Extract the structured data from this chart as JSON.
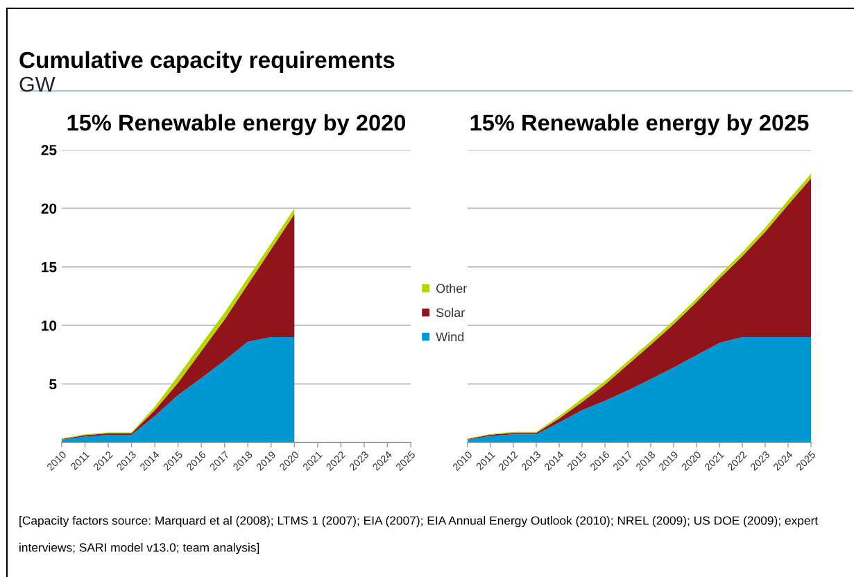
{
  "chart_data": [
    {
      "type": "other",
      "title": "Cumulative capacity requirements",
      "subtitle": "GW",
      "annotations": [
        "[Capacity factors source: Marquard et al (2008); LTMS 1 (2007); EIA (2007); EIA Annual Energy Outlook (2010); NREL (2009); US DOE (2009); expert interviews; SARI model v13.0; team analysis]"
      ]
    },
    {
      "type": "area",
      "title": "15% Renewable energy by 2020",
      "stacked": true,
      "categories": [
        "2010",
        "2011",
        "2012",
        "2013",
        "2014",
        "2015",
        "2016",
        "2017",
        "2018",
        "2019",
        "2020",
        "2021",
        "2022",
        "2023",
        "2024",
        "2025"
      ],
      "series": [
        {
          "name": "Wind",
          "color": "#0097d2",
          "values": [
            0.25,
            0.5,
            0.65,
            0.65,
            2.25,
            4.05,
            5.5,
            7.0,
            8.6,
            9.0,
            9.0,
            null,
            null,
            null,
            null,
            null
          ]
        },
        {
          "name": "Solar",
          "color": "#92141b",
          "values": [
            0.05,
            0.12,
            0.13,
            0.13,
            0.5,
            1.05,
            2.3,
            3.5,
            4.9,
            7.5,
            10.5,
            null,
            null,
            null,
            null,
            null
          ]
        },
        {
          "name": "Other",
          "color": "#b5d400",
          "values": [
            0.05,
            0.07,
            0.08,
            0.08,
            0.3,
            0.6,
            0.6,
            0.6,
            0.55,
            0.5,
            0.5,
            null,
            null,
            null,
            null,
            null
          ]
        }
      ],
      "ylim": [
        0,
        25
      ],
      "yticks": [
        5,
        10,
        15,
        20,
        25
      ],
      "grid": "y",
      "legend": "right"
    },
    {
      "type": "area",
      "title": "15% Renewable energy by 2025",
      "stacked": true,
      "categories": [
        "2010",
        "2011",
        "2012",
        "2013",
        "2014",
        "2015",
        "2016",
        "2017",
        "2018",
        "2019",
        "2020",
        "2021",
        "2022",
        "2023",
        "2024",
        "2025"
      ],
      "series": [
        {
          "color": "#0097d2",
          "values": [
            0.25,
            0.55,
            0.7,
            0.7,
            1.7,
            2.75,
            3.55,
            4.45,
            5.4,
            6.4,
            7.45,
            8.5,
            9.0,
            9.0,
            9.0,
            9.0
          ]
        },
        {
          "color": "#92141b",
          "values": [
            0.05,
            0.12,
            0.12,
            0.12,
            0.35,
            0.7,
            1.4,
            2.2,
            2.95,
            3.7,
            4.55,
            5.5,
            6.9,
            9.0,
            11.3,
            13.55
          ]
        },
        {
          "color": "#b5d400",
          "values": [
            0.04,
            0.06,
            0.08,
            0.08,
            0.2,
            0.3,
            0.3,
            0.3,
            0.3,
            0.3,
            0.3,
            0.3,
            0.35,
            0.35,
            0.4,
            0.4
          ]
        }
      ],
      "ylim": [
        0,
        25
      ],
      "yticks": [
        5,
        10,
        15,
        20,
        25
      ],
      "grid": "y",
      "tick_labels": "x"
    }
  ]
}
